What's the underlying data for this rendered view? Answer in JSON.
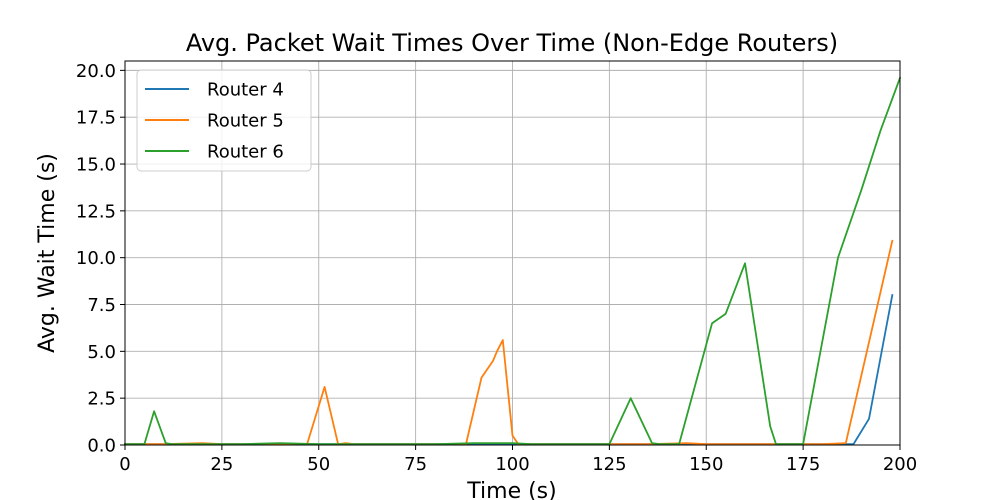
{
  "chart_data": {
    "type": "line",
    "title": "Avg. Packet Wait Times Over Time (Non-Edge Routers)",
    "xlabel": "Time (s)",
    "ylabel": "Avg. Wait Time (s)",
    "xlim": [
      0,
      200
    ],
    "ylim": [
      0,
      20.5
    ],
    "xticks": [
      0,
      25,
      50,
      75,
      100,
      125,
      150,
      175,
      200
    ],
    "xtick_labels": [
      "0",
      "25",
      "50",
      "75",
      "100",
      "125",
      "150",
      "175",
      "200"
    ],
    "yticks": [
      0,
      2.5,
      5,
      7.5,
      10,
      12.5,
      15,
      17.5,
      20
    ],
    "ytick_labels": [
      "0.0",
      "2.5",
      "5.0",
      "7.5",
      "10.0",
      "12.5",
      "15.0",
      "17.5",
      "20.0"
    ],
    "grid": true,
    "legend_position": "top-left",
    "series": [
      {
        "name": "Router 4",
        "color": "#1f77b4",
        "x": [
          0,
          5,
          10,
          20,
          30,
          40,
          50,
          60,
          70,
          80,
          90,
          100,
          110,
          120,
          130,
          140,
          150,
          160,
          170,
          180,
          185,
          188,
          192,
          198
        ],
        "y": [
          0.05,
          0.05,
          0.05,
          0.05,
          0.05,
          0.05,
          0.05,
          0.05,
          0.05,
          0.05,
          0.05,
          0.05,
          0.05,
          0.05,
          0.05,
          0.05,
          0.05,
          0.05,
          0.05,
          0.05,
          0.05,
          0.05,
          1.4,
          8.0
        ]
      },
      {
        "name": "Router 5",
        "color": "#ff7f0e",
        "x": [
          0,
          5,
          10,
          20,
          25,
          30,
          40,
          47,
          51.5,
          55,
          57,
          59,
          65,
          75,
          88,
          92,
          95,
          96,
          97.5,
          100,
          101.5,
          105,
          115,
          125,
          135,
          145,
          150,
          160,
          170,
          180,
          186,
          198
        ],
        "y": [
          0.05,
          0.05,
          0.05,
          0.1,
          0.05,
          0.05,
          0.05,
          0.05,
          3.1,
          0.05,
          0.1,
          0.05,
          0.05,
          0.05,
          0.05,
          3.6,
          4.5,
          5.0,
          5.6,
          0.5,
          0.05,
          0.05,
          0.05,
          0.05,
          0.05,
          0.1,
          0.05,
          0.05,
          0.05,
          0.05,
          0.1,
          10.9
        ]
      },
      {
        "name": "Router 6",
        "color": "#2ca02c",
        "x": [
          0,
          5,
          7.5,
          10.5,
          12,
          20,
          30,
          40,
          50,
          60,
          70,
          80,
          90,
          100,
          105,
          110,
          115,
          120,
          125,
          130.5,
          136,
          138,
          143,
          151.5,
          155,
          160,
          165,
          166.5,
          168,
          173,
          175,
          184,
          190,
          195,
          200
        ],
        "y": [
          0.05,
          0.05,
          1.8,
          0.1,
          0.05,
          0.05,
          0.05,
          0.1,
          0.05,
          0.05,
          0.05,
          0.05,
          0.1,
          0.1,
          0.05,
          0.05,
          0.05,
          0.05,
          0.05,
          2.5,
          0.1,
          0.05,
          0.05,
          6.5,
          7.0,
          9.7,
          3.0,
          1.0,
          0.05,
          0.05,
          0.05,
          10.0,
          13.6,
          16.8,
          19.6
        ]
      }
    ]
  }
}
